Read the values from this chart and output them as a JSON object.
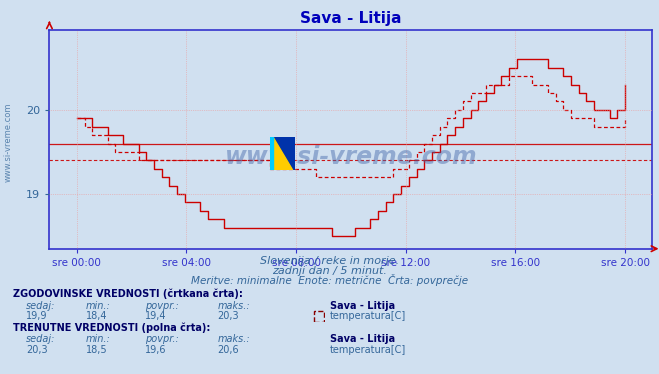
{
  "title": "Sava - Litija",
  "bg_color": "#d0e0f0",
  "plot_bg_color": "#d0e0f0",
  "line_color": "#cc0000",
  "grid_color": "#ee9999",
  "axis_color": "#3333cc",
  "text_color": "#336699",
  "title_color": "#0000bb",
  "watermark_color": "#4466aa",
  "subtitle1": "Slovenija / reke in morje.",
  "subtitle2": "zadnji dan / 5 minut.",
  "subtitle3": "Meritve: minimalne  Enote: metrične  Črta: povprečje",
  "label_hist": "ZGODOVINSKE VREDNOSTI (črtkana črta):",
  "label_curr": "TRENUTNE VREDNOSTI (polna črta):",
  "station_name": "Sava - Litija",
  "param_name": "temperatura[C]",
  "x_ticks_labels": [
    "sre 00:00",
    "sre 04:00",
    "sre 08:00",
    "sre 12:00",
    "sre 16:00",
    "sre 20:00"
  ],
  "watermark": "www.si-vreme.com",
  "ylim_min": 18.35,
  "ylim_max": 20.95,
  "yticks": [
    19,
    20
  ],
  "hline_curr_avg": 19.6,
  "hline_hist_avg": 19.4,
  "solid_line_data": [
    19.9,
    19.9,
    19.8,
    19.8,
    19.7,
    19.7,
    19.6,
    19.6,
    19.5,
    19.4,
    19.3,
    19.2,
    19.1,
    19.0,
    18.9,
    18.9,
    18.8,
    18.7,
    18.7,
    18.6,
    18.6,
    18.6,
    18.6,
    18.6,
    18.6,
    18.6,
    18.6,
    18.6,
    18.6,
    18.6,
    18.6,
    18.6,
    18.6,
    18.5,
    18.5,
    18.5,
    18.6,
    18.6,
    18.7,
    18.8,
    18.9,
    19.0,
    19.1,
    19.2,
    19.3,
    19.4,
    19.5,
    19.6,
    19.7,
    19.8,
    19.9,
    20.0,
    20.1,
    20.2,
    20.3,
    20.4,
    20.5,
    20.6,
    20.6,
    20.6,
    20.6,
    20.5,
    20.5,
    20.4,
    20.3,
    20.2,
    20.1,
    20.0,
    20.0,
    19.9,
    20.0,
    20.3
  ],
  "dashed_line_data": [
    19.9,
    19.8,
    19.7,
    19.7,
    19.6,
    19.5,
    19.5,
    19.5,
    19.4,
    19.4,
    19.4,
    19.4,
    19.4,
    19.4,
    19.4,
    19.4,
    19.4,
    19.4,
    19.4,
    19.4,
    19.4,
    19.4,
    19.4,
    19.4,
    19.4,
    19.3,
    19.3,
    19.3,
    19.3,
    19.3,
    19.3,
    19.2,
    19.2,
    19.2,
    19.2,
    19.2,
    19.2,
    19.2,
    19.2,
    19.2,
    19.2,
    19.3,
    19.3,
    19.4,
    19.5,
    19.6,
    19.7,
    19.8,
    19.9,
    20.0,
    20.1,
    20.2,
    20.2,
    20.3,
    20.3,
    20.3,
    20.4,
    20.4,
    20.4,
    20.3,
    20.3,
    20.2,
    20.1,
    20.0,
    19.9,
    19.9,
    19.9,
    19.8,
    19.8,
    19.8,
    19.8,
    19.9
  ]
}
